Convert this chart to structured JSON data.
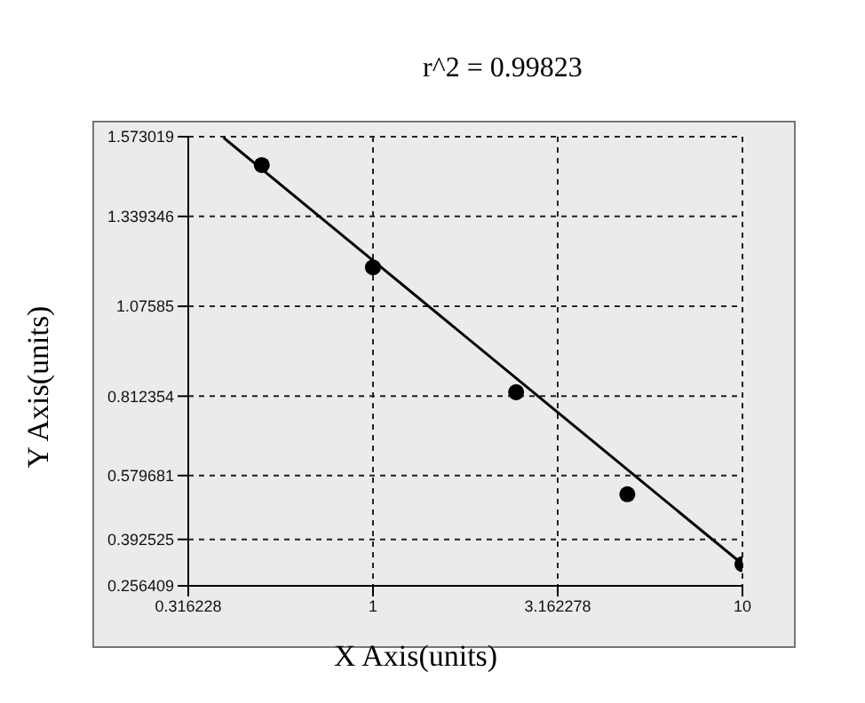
{
  "chart_data": {
    "type": "scatter",
    "title": "r^2 = 0.99823",
    "xlabel": "X Axis(units)",
    "ylabel": "Y Axis(units)",
    "log": "x",
    "grid": true,
    "line_style": "solid",
    "xlim": [
      0.316228,
      10
    ],
    "xticks": [
      0.316228,
      1,
      3.162278,
      10
    ],
    "ylim": [
      0.256409,
      1.573019
    ],
    "yticks": [
      0.256409,
      0.392525,
      0.579681,
      0.812354,
      1.07585,
      1.339346,
      1.573019
    ],
    "series": [
      {
        "color": "#000000",
        "marker": "circle",
        "x": [
          0.5,
          1,
          2.44,
          4.88,
          10
        ],
        "values": [
          1.49,
          1.19,
          0.824,
          0.525,
          0.32
        ]
      },
      {
        "type": "line",
        "color": "#000000",
        "marker": "none",
        "x": [
          0.394,
          10
        ],
        "values": [
          1.57,
          0.32
        ]
      }
    ]
  }
}
